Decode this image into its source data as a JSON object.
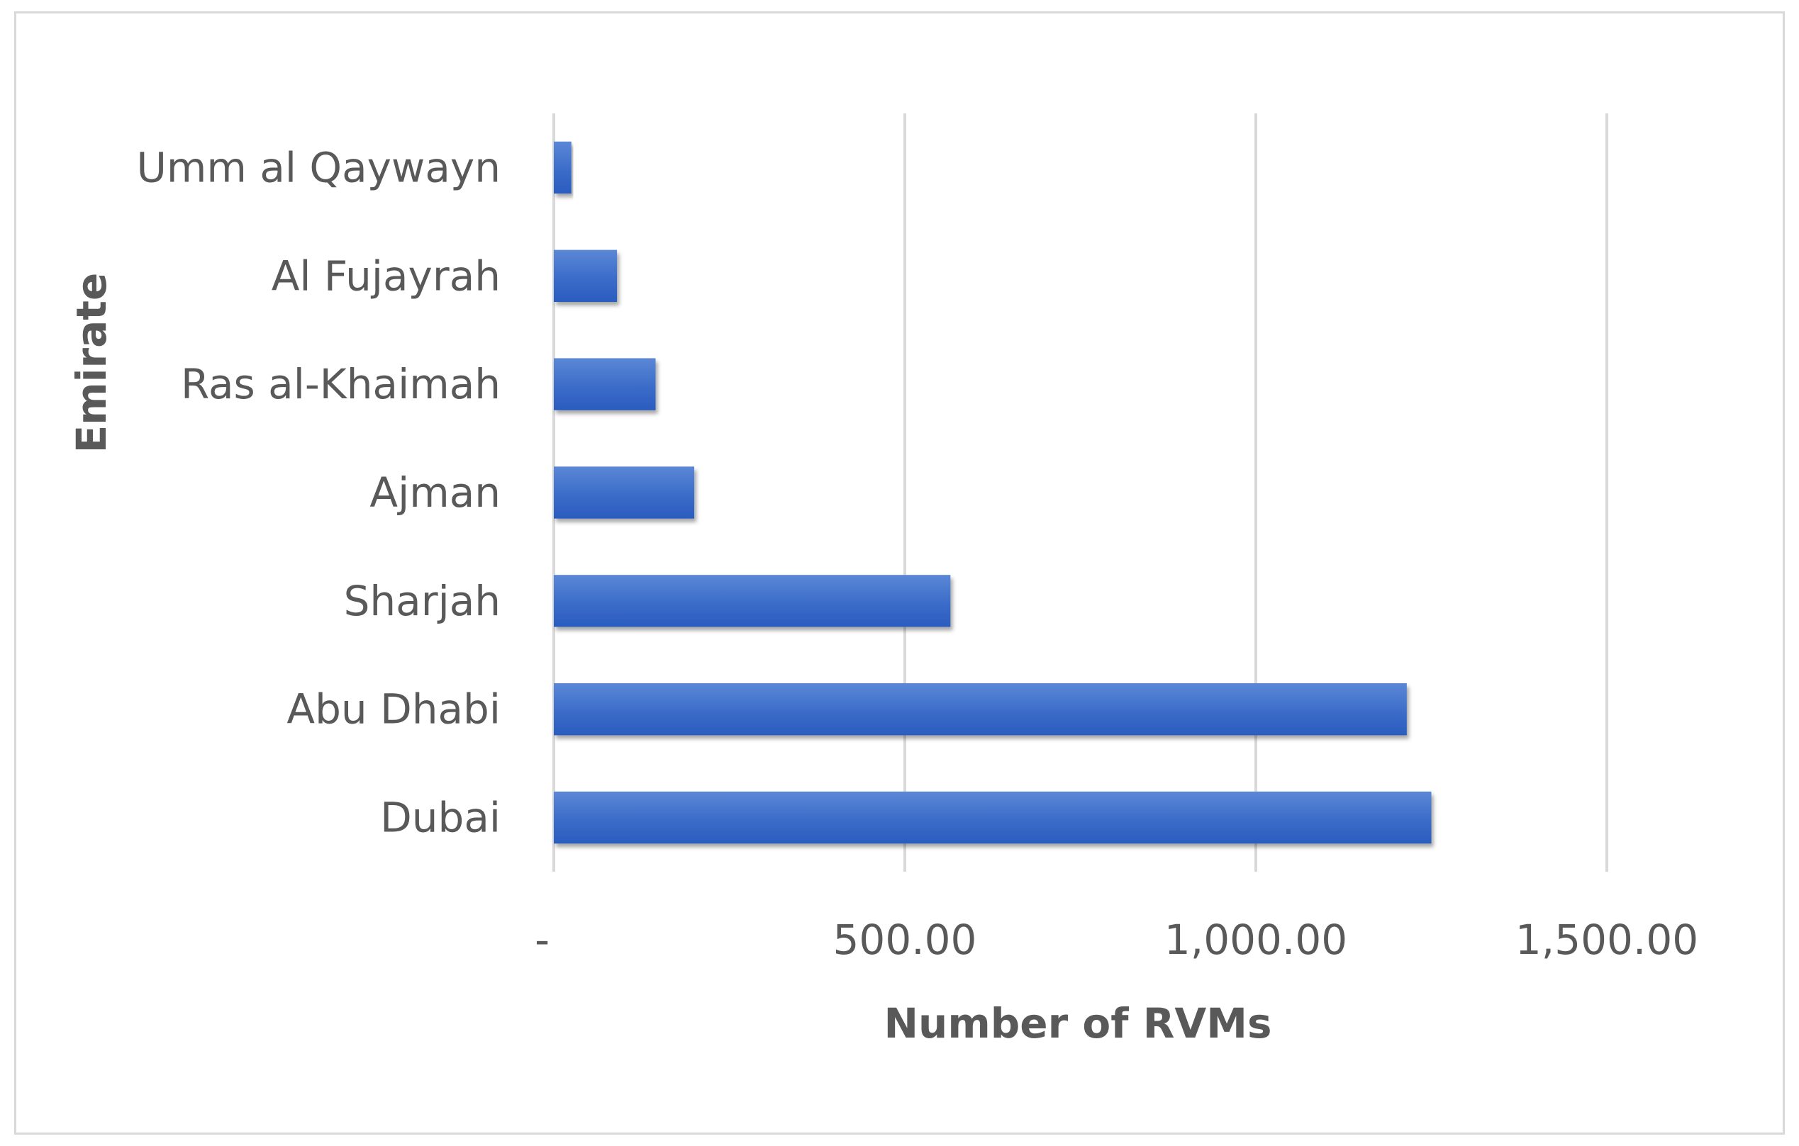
{
  "chart_data": {
    "type": "bar",
    "orientation": "horizontal",
    "categories": [
      "Dubai",
      "Abu Dhabi",
      "Sharjah",
      "Ajman",
      "Ras al-Khaimah",
      "Al Fujayrah",
      "Umm al Qaywayn"
    ],
    "values": [
      1250,
      1215,
      565,
      200,
      145,
      90,
      25
    ],
    "title": "",
    "xlabel": "Number of RVMs",
    "ylabel": "Emirate",
    "xlim": [
      0,
      1500
    ],
    "xticks": [
      0,
      500,
      1000,
      1500
    ],
    "xtick_labels": [
      "-",
      "500.00",
      "1,000.00",
      "1,500.00"
    ],
    "grid": "vertical",
    "legend": "none",
    "bar_color": "#4472c4",
    "bar_color_dark": "#2f5fbf",
    "grid_color": "#d9d9d9",
    "text_color": "#595959"
  }
}
